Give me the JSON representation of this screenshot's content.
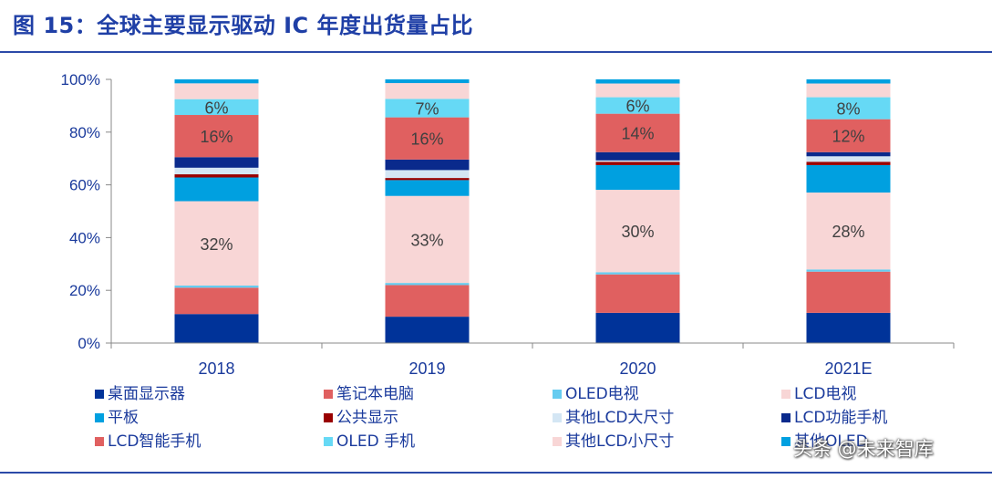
{
  "header": {
    "title": "图 15：全球主要显示驱动 IC 年度出货量占比"
  },
  "watermark": {
    "text": "头条 @未来智库"
  },
  "chart_data": {
    "type": "bar",
    "stacked": true,
    "categories": [
      "2018",
      "2019",
      "2020",
      "2021E"
    ],
    "ylim": [
      0,
      100
    ],
    "yticks": [
      "0%",
      "20%",
      "40%",
      "60%",
      "80%",
      "100%"
    ],
    "ytick_values": [
      0,
      20,
      40,
      60,
      80,
      100
    ],
    "title": "",
    "xlabel": "",
    "ylabel": "",
    "legend_position": "bottom",
    "series": [
      {
        "name": "桌面显示器",
        "color": "#003399",
        "values": [
          11,
          10,
          11,
          11
        ]
      },
      {
        "name": "笔记本电脑",
        "color": "#e06060",
        "values": [
          10,
          12,
          14,
          15
        ]
      },
      {
        "name": "OLED电视",
        "color": "#66ccf0",
        "values": [
          0.8,
          0.8,
          0.8,
          0.8
        ]
      },
      {
        "name": "LCD电视",
        "color": "#f8d6d6",
        "values": [
          32,
          33,
          30,
          28
        ]
      },
      {
        "name": "平板",
        "color": "#00a0e0",
        "values": [
          9,
          6,
          9,
          10
        ]
      },
      {
        "name": "公共显示",
        "color": "#990000",
        "values": [
          1.2,
          0.8,
          1.2,
          1.2
        ]
      },
      {
        "name": "其他LCD大尺寸",
        "color": "#d4e6f4",
        "values": [
          2.5,
          3,
          0.5,
          2
        ]
      },
      {
        "name": "LCD功能手机",
        "color": "#0a2a8c",
        "values": [
          4,
          4,
          3,
          1.5
        ]
      },
      {
        "name": "LCD智能手机",
        "color": "#e06060",
        "values": [
          16,
          16,
          14,
          12
        ]
      },
      {
        "name": "OLED 手机",
        "color": "#66d9f5",
        "values": [
          6,
          7,
          6,
          8
        ]
      },
      {
        "name": "其他LCD小尺寸",
        "color": "#f8d6d6",
        "values": [
          6,
          6,
          5,
          5
        ]
      },
      {
        "name": "其他OLED",
        "color": "#00a0e0",
        "values": [
          1.5,
          1.4,
          1.5,
          1.5
        ]
      }
    ],
    "data_labels": [
      {
        "series": "LCD电视",
        "labels": [
          "32%",
          "33%",
          "30%",
          "28%"
        ]
      },
      {
        "series": "LCD智能手机",
        "labels": [
          "16%",
          "16%",
          "14%",
          "12%"
        ]
      },
      {
        "series": "OLED 手机",
        "labels": [
          "6%",
          "7%",
          "6%",
          "8%"
        ]
      }
    ]
  }
}
